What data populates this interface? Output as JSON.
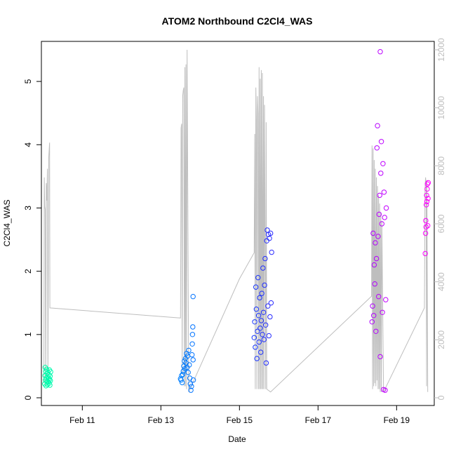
{
  "chart_data": {
    "type": "scatter",
    "title": "ATOM2 Northbound C2Cl4_WAS",
    "xlabel": "Date",
    "ylabel": "C2Cl4_WAS",
    "xlim": [
      "2016-02-09T23:00",
      "2016-02-19T23:00"
    ],
    "ylim": [
      0,
      5.5
    ],
    "y2lim": [
      0,
      12000
    ],
    "x_ticks": [
      {
        "date": "2016-02-11T00:00",
        "label": "Feb 11"
      },
      {
        "date": "2016-02-13T00:00",
        "label": "Feb 13"
      },
      {
        "date": "2016-02-15T00:00",
        "label": "Feb 15"
      },
      {
        "date": "2016-02-17T00:00",
        "label": "Feb 17"
      },
      {
        "date": "2016-02-19T00:00",
        "label": "Feb 19"
      }
    ],
    "y_ticks": [
      0,
      1,
      2,
      3,
      4,
      5
    ],
    "y2_ticks": [
      0,
      2000,
      4000,
      6000,
      8000,
      10000,
      12000
    ],
    "grid": false,
    "colors": {
      "frame": "#000000",
      "right_axis": "#bebebe",
      "altitude_line": "#bebebe",
      "point_start": "#00ffaa",
      "point_mid_early": "#00aaff",
      "point_mid": "#0044ff",
      "point_mid_late": "#7700ff",
      "point_end": "#ff00ff"
    },
    "points": [
      {
        "x": "2016-02-10T01:00",
        "y": 0.22
      },
      {
        "x": "2016-02-10T01:10",
        "y": 0.35
      },
      {
        "x": "2016-02-10T01:20",
        "y": 0.48
      },
      {
        "x": "2016-02-10T01:30",
        "y": 0.28
      },
      {
        "x": "2016-02-10T01:40",
        "y": 0.42
      },
      {
        "x": "2016-02-10T01:50",
        "y": 0.19
      },
      {
        "x": "2016-02-10T02:00",
        "y": 0.31
      },
      {
        "x": "2016-02-10T02:10",
        "y": 0.45
      },
      {
        "x": "2016-02-10T02:20",
        "y": 0.26
      },
      {
        "x": "2016-02-10T02:30",
        "y": 0.38
      },
      {
        "x": "2016-02-10T02:40",
        "y": 0.21
      },
      {
        "x": "2016-02-10T02:50",
        "y": 0.33
      },
      {
        "x": "2016-02-10T03:00",
        "y": 0.4
      },
      {
        "x": "2016-02-10T03:10",
        "y": 0.25
      },
      {
        "x": "2016-02-10T03:20",
        "y": 0.3
      },
      {
        "x": "2016-02-10T03:30",
        "y": 0.36
      },
      {
        "x": "2016-02-10T03:40",
        "y": 0.23
      },
      {
        "x": "2016-02-10T03:50",
        "y": 0.44
      },
      {
        "x": "2016-02-10T04:00",
        "y": 0.29
      },
      {
        "x": "2016-02-10T04:10",
        "y": 0.2
      },
      {
        "x": "2016-02-10T04:20",
        "y": 0.34
      },
      {
        "x": "2016-02-10T04:30",
        "y": 0.27
      },
      {
        "x": "2016-02-10T04:40",
        "y": 0.41
      },
      {
        "x": "2016-02-13T12:00",
        "y": 0.3
      },
      {
        "x": "2016-02-13T12:20",
        "y": 0.28
      },
      {
        "x": "2016-02-13T12:40",
        "y": 0.35
      },
      {
        "x": "2016-02-13T13:00",
        "y": 0.24
      },
      {
        "x": "2016-02-13T13:20",
        "y": 0.37
      },
      {
        "x": "2016-02-13T13:40",
        "y": 0.42
      },
      {
        "x": "2016-02-13T14:00",
        "y": 0.5
      },
      {
        "x": "2016-02-13T14:20",
        "y": 0.58
      },
      {
        "x": "2016-02-13T14:40",
        "y": 0.46
      },
      {
        "x": "2016-02-13T15:00",
        "y": 0.62
      },
      {
        "x": "2016-02-13T15:20",
        "y": 0.55
      },
      {
        "x": "2016-02-13T15:40",
        "y": 0.7
      },
      {
        "x": "2016-02-13T16:00",
        "y": 0.48
      },
      {
        "x": "2016-02-13T16:20",
        "y": 0.66
      },
      {
        "x": "2016-02-13T16:40",
        "y": 0.4
      },
      {
        "x": "2016-02-13T17:00",
        "y": 0.75
      },
      {
        "x": "2016-02-13T17:20",
        "y": 0.52
      },
      {
        "x": "2016-02-13T17:40",
        "y": 0.31
      },
      {
        "x": "2016-02-13T18:00",
        "y": 0.22
      },
      {
        "x": "2016-02-13T18:20",
        "y": 0.12
      },
      {
        "x": "2016-02-13T18:40",
        "y": 0.18
      },
      {
        "x": "2016-02-13T19:00",
        "y": 0.68
      },
      {
        "x": "2016-02-13T19:10",
        "y": 0.85
      },
      {
        "x": "2016-02-13T19:20",
        "y": 1.0
      },
      {
        "x": "2016-02-13T19:30",
        "y": 1.12
      },
      {
        "x": "2016-02-13T19:40",
        "y": 0.6
      },
      {
        "x": "2016-02-13T19:50",
        "y": 0.28
      },
      {
        "x": "2016-02-13T19:40",
        "y": 1.6
      },
      {
        "x": "2016-02-15T09:00",
        "y": 0.95
      },
      {
        "x": "2016-02-15T09:20",
        "y": 1.2
      },
      {
        "x": "2016-02-15T09:40",
        "y": 0.8
      },
      {
        "x": "2016-02-15T10:00",
        "y": 1.75
      },
      {
        "x": "2016-02-15T10:20",
        "y": 1.4
      },
      {
        "x": "2016-02-15T10:40",
        "y": 0.62
      },
      {
        "x": "2016-02-15T11:00",
        "y": 1.05
      },
      {
        "x": "2016-02-15T11:20",
        "y": 1.9
      },
      {
        "x": "2016-02-15T11:40",
        "y": 1.3
      },
      {
        "x": "2016-02-15T12:00",
        "y": 0.88
      },
      {
        "x": "2016-02-15T12:20",
        "y": 1.58
      },
      {
        "x": "2016-02-15T12:40",
        "y": 1.1
      },
      {
        "x": "2016-02-15T13:00",
        "y": 0.72
      },
      {
        "x": "2016-02-15T13:20",
        "y": 1.22
      },
      {
        "x": "2016-02-15T13:40",
        "y": 1.65
      },
      {
        "x": "2016-02-15T14:00",
        "y": 1.0
      },
      {
        "x": "2016-02-15T14:20",
        "y": 2.05
      },
      {
        "x": "2016-02-15T14:40",
        "y": 1.35
      },
      {
        "x": "2016-02-15T15:00",
        "y": 0.92
      },
      {
        "x": "2016-02-15T15:20",
        "y": 1.78
      },
      {
        "x": "2016-02-15T15:40",
        "y": 2.2
      },
      {
        "x": "2016-02-15T16:00",
        "y": 1.15
      },
      {
        "x": "2016-02-15T16:20",
        "y": 0.55
      },
      {
        "x": "2016-02-15T16:40",
        "y": 2.48
      },
      {
        "x": "2016-02-15T17:00",
        "y": 2.65
      },
      {
        "x": "2016-02-15T17:20",
        "y": 1.45
      },
      {
        "x": "2016-02-15T17:40",
        "y": 2.58
      },
      {
        "x": "2016-02-15T18:00",
        "y": 0.98
      },
      {
        "x": "2016-02-15T18:20",
        "y": 2.52
      },
      {
        "x": "2016-02-15T18:40",
        "y": 1.28
      },
      {
        "x": "2016-02-15T19:00",
        "y": 2.6
      },
      {
        "x": "2016-02-15T19:20",
        "y": 1.5
      },
      {
        "x": "2016-02-15T19:40",
        "y": 2.3
      },
      {
        "x": "2016-02-18T09:00",
        "y": 1.2
      },
      {
        "x": "2016-02-18T09:20",
        "y": 1.45
      },
      {
        "x": "2016-02-18T09:40",
        "y": 2.6
      },
      {
        "x": "2016-02-18T10:00",
        "y": 1.3
      },
      {
        "x": "2016-02-18T10:20",
        "y": 2.1
      },
      {
        "x": "2016-02-18T10:40",
        "y": 1.8
      },
      {
        "x": "2016-02-18T11:00",
        "y": 2.45
      },
      {
        "x": "2016-02-18T11:20",
        "y": 1.05
      },
      {
        "x": "2016-02-18T11:40",
        "y": 2.2
      },
      {
        "x": "2016-02-18T12:00",
        "y": 3.95
      },
      {
        "x": "2016-02-18T12:20",
        "y": 4.3
      },
      {
        "x": "2016-02-18T12:40",
        "y": 2.55
      },
      {
        "x": "2016-02-18T13:00",
        "y": 1.6
      },
      {
        "x": "2016-02-18T13:20",
        "y": 2.9
      },
      {
        "x": "2016-02-18T13:40",
        "y": 3.2
      },
      {
        "x": "2016-02-18T14:00",
        "y": 0.65
      },
      {
        "x": "2016-02-18T14:20",
        "y": 3.55
      },
      {
        "x": "2016-02-18T14:40",
        "y": 4.05
      },
      {
        "x": "2016-02-18T15:00",
        "y": 2.75
      },
      {
        "x": "2016-02-18T15:20",
        "y": 1.35
      },
      {
        "x": "2016-02-18T15:40",
        "y": 3.7
      },
      {
        "x": "2016-02-18T16:00",
        "y": 0.13
      },
      {
        "x": "2016-02-18T16:20",
        "y": 3.25
      },
      {
        "x": "2016-02-18T16:40",
        "y": 2.85
      },
      {
        "x": "2016-02-18T17:00",
        "y": 0.12
      },
      {
        "x": "2016-02-18T17:20",
        "y": 1.55
      },
      {
        "x": "2016-02-18T17:40",
        "y": 3.0
      },
      {
        "x": "2016-02-18T14:00",
        "y": 5.47
      },
      {
        "x": "2016-02-19T17:30",
        "y": 2.28
      },
      {
        "x": "2016-02-19T17:40",
        "y": 2.6
      },
      {
        "x": "2016-02-19T17:50",
        "y": 2.8
      },
      {
        "x": "2016-02-19T18:00",
        "y": 2.7
      },
      {
        "x": "2016-02-19T18:10",
        "y": 3.05
      },
      {
        "x": "2016-02-19T18:20",
        "y": 3.2
      },
      {
        "x": "2016-02-19T18:30",
        "y": 3.1
      },
      {
        "x": "2016-02-19T18:40",
        "y": 3.3
      },
      {
        "x": "2016-02-19T18:50",
        "y": 3.38
      },
      {
        "x": "2016-02-19T19:00",
        "y": 2.72
      },
      {
        "x": "2016-02-19T19:10",
        "y": 3.15
      },
      {
        "x": "2016-02-19T19:20",
        "y": 3.4
      }
    ],
    "altitude_series": {
      "axis": "right",
      "values": [
        {
          "x": "2016-02-10T00:30",
          "y": 500
        },
        {
          "x": "2016-02-10T00:45",
          "y": 7600
        },
        {
          "x": "2016-02-10T01:00",
          "y": 6600
        },
        {
          "x": "2016-02-10T01:20",
          "y": 6500
        },
        {
          "x": "2016-02-10T01:40",
          "y": 400
        },
        {
          "x": "2016-02-10T02:00",
          "y": 7400
        },
        {
          "x": "2016-02-10T02:20",
          "y": 6800
        },
        {
          "x": "2016-02-10T02:40",
          "y": 7900
        },
        {
          "x": "2016-02-10T03:00",
          "y": 500
        },
        {
          "x": "2016-02-10T03:30",
          "y": 8300
        },
        {
          "x": "2016-02-10T04:00",
          "y": 8800
        },
        {
          "x": "2016-02-10T04:10",
          "y": 3100
        },
        {
          "x": "2016-02-13T12:00",
          "y": 2750
        },
        {
          "x": "2016-02-13T12:20",
          "y": 9300
        },
        {
          "x": "2016-02-13T12:40",
          "y": 9450
        },
        {
          "x": "2016-02-13T13:00",
          "y": 800
        },
        {
          "x": "2016-02-13T13:20",
          "y": 10400
        },
        {
          "x": "2016-02-13T13:40",
          "y": 10600
        },
        {
          "x": "2016-02-13T14:00",
          "y": 10700
        },
        {
          "x": "2016-02-13T14:20",
          "y": 400
        },
        {
          "x": "2016-02-13T14:40",
          "y": 11400
        },
        {
          "x": "2016-02-13T15:00",
          "y": 400
        },
        {
          "x": "2016-02-13T15:20",
          "y": 11500
        },
        {
          "x": "2016-02-13T15:40",
          "y": 300
        },
        {
          "x": "2016-02-13T16:00",
          "y": 12000
        },
        {
          "x": "2016-02-13T17:00",
          "y": 200
        },
        {
          "x": "2016-02-15T00:00",
          "y": 4100
        },
        {
          "x": "2016-02-15T09:00",
          "y": 5000
        },
        {
          "x": "2016-02-15T09:20",
          "y": 9100
        },
        {
          "x": "2016-02-15T09:40",
          "y": 300
        },
        {
          "x": "2016-02-15T10:00",
          "y": 10700
        },
        {
          "x": "2016-02-15T10:20",
          "y": 9600
        },
        {
          "x": "2016-02-15T10:40",
          "y": 300
        },
        {
          "x": "2016-02-15T11:00",
          "y": 10400
        },
        {
          "x": "2016-02-15T11:20",
          "y": 9800
        },
        {
          "x": "2016-02-15T11:40",
          "y": 300
        },
        {
          "x": "2016-02-15T12:00",
          "y": 11400
        },
        {
          "x": "2016-02-15T12:20",
          "y": 300
        },
        {
          "x": "2016-02-15T12:40",
          "y": 11000
        },
        {
          "x": "2016-02-15T13:00",
          "y": 300
        },
        {
          "x": "2016-02-15T13:20",
          "y": 11300
        },
        {
          "x": "2016-02-15T13:40",
          "y": 300
        },
        {
          "x": "2016-02-15T14:00",
          "y": 11200
        },
        {
          "x": "2016-02-15T14:20",
          "y": 300
        },
        {
          "x": "2016-02-15T14:40",
          "y": 10400
        },
        {
          "x": "2016-02-15T15:00",
          "y": 300
        },
        {
          "x": "2016-02-15T15:20",
          "y": 10100
        },
        {
          "x": "2016-02-15T16:00",
          "y": 300
        },
        {
          "x": "2016-02-15T16:20",
          "y": 9500
        },
        {
          "x": "2016-02-15T16:40",
          "y": 300
        },
        {
          "x": "2016-02-15T19:00",
          "y": 200
        },
        {
          "x": "2016-02-18T08:40",
          "y": 3500
        },
        {
          "x": "2016-02-18T09:00",
          "y": 8700
        },
        {
          "x": "2016-02-18T09:20",
          "y": 300
        },
        {
          "x": "2016-02-18T09:40",
          "y": 8600
        },
        {
          "x": "2016-02-18T10:00",
          "y": 400
        },
        {
          "x": "2016-02-18T10:20",
          "y": 8200
        },
        {
          "x": "2016-02-18T10:40",
          "y": 500
        },
        {
          "x": "2016-02-18T11:00",
          "y": 7900
        },
        {
          "x": "2016-02-18T11:20",
          "y": 400
        },
        {
          "x": "2016-02-18T11:40",
          "y": 7600
        },
        {
          "x": "2016-02-18T12:00",
          "y": 600
        },
        {
          "x": "2016-02-18T12:20",
          "y": 7300
        },
        {
          "x": "2016-02-18T12:40",
          "y": 300
        },
        {
          "x": "2016-02-18T13:00",
          "y": 7000
        },
        {
          "x": "2016-02-18T13:20",
          "y": 300
        },
        {
          "x": "2016-02-18T13:40",
          "y": 6700
        },
        {
          "x": "2016-02-18T14:00",
          "y": 200
        },
        {
          "x": "2016-02-18T14:20",
          "y": 6400
        },
        {
          "x": "2016-02-18T14:40",
          "y": 200
        },
        {
          "x": "2016-02-18T15:00",
          "y": 6100
        },
        {
          "x": "2016-02-18T16:00",
          "y": 200
        },
        {
          "x": "2016-02-19T17:00",
          "y": 3100
        },
        {
          "x": "2016-02-19T17:10",
          "y": 5100
        },
        {
          "x": "2016-02-19T17:20",
          "y": 7200
        },
        {
          "x": "2016-02-19T17:40",
          "y": 7600
        },
        {
          "x": "2016-02-19T18:00",
          "y": 7400
        },
        {
          "x": "2016-02-19T18:20",
          "y": 400
        },
        {
          "x": "2016-02-19T18:30",
          "y": 7500
        },
        {
          "x": "2016-02-19T19:00",
          "y": 200
        }
      ]
    }
  }
}
